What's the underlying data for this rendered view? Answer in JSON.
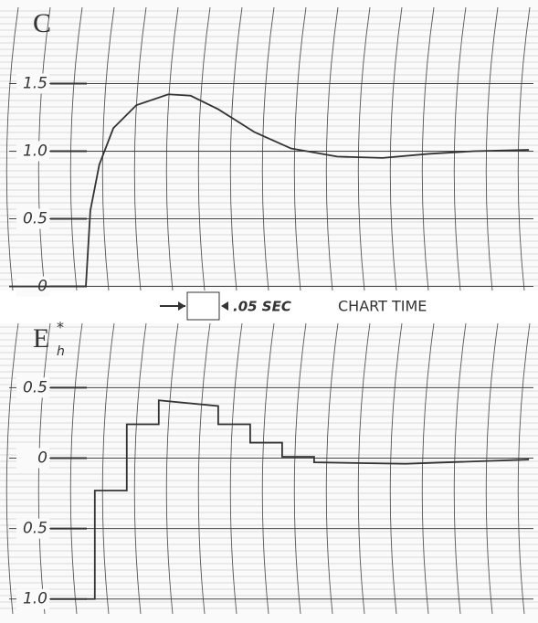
{
  "chart_data": [
    {
      "type": "line",
      "title": "C",
      "color": "#333333",
      "grid": true,
      "x": [
        -0.12,
        0,
        0.007,
        0.021,
        0.043,
        0.079,
        0.129,
        0.164,
        0.207,
        0.264,
        0.321,
        0.393,
        0.464,
        0.536,
        0.607,
        0.693
      ],
      "values": [
        0,
        0,
        0.56,
        0.9,
        1.17,
        1.34,
        1.42,
        1.41,
        1.31,
        1.14,
        1.02,
        0.96,
        0.95,
        0.98,
        1.0,
        1.01
      ],
      "xlim": [
        -0.12,
        0.7
      ],
      "ylim": [
        -0.03,
        2.05
      ],
      "yticks": [
        0,
        {
          "value": 0.5,
          "label": "0.5"
        },
        {
          "value": 1,
          "label": "1.0"
        },
        1.5
      ]
    },
    {
      "type": "line",
      "title": "E",
      "title_sup": "*",
      "title_sub": "h",
      "color": "#333333",
      "grid": true,
      "x": [
        0,
        0.014,
        0.014,
        0.064,
        0.064,
        0.114,
        0.114,
        0.207,
        0.207,
        0.257,
        0.257,
        0.307,
        0.307,
        0.357,
        0.357,
        0.5,
        0.693
      ],
      "values": [
        -1.0,
        -1.0,
        -0.23,
        -0.23,
        0.24,
        0.24,
        0.41,
        0.37,
        0.24,
        0.24,
        0.11,
        0.11,
        0.01,
        0.01,
        -0.03,
        -0.04,
        -0.01
      ],
      "xlim": [
        -0.12,
        0.7
      ],
      "ylim": [
        -1.06,
        0.95
      ],
      "yticks": [
        {
          "value": 0.5,
          "label": "0.5"
        },
        0,
        {
          "value": -0.5,
          "label": "0.5"
        },
        {
          "value": -1,
          "label": "1.0"
        }
      ]
    }
  ],
  "annotations": [
    ".05 SEC",
    "CHART TIME"
  ]
}
